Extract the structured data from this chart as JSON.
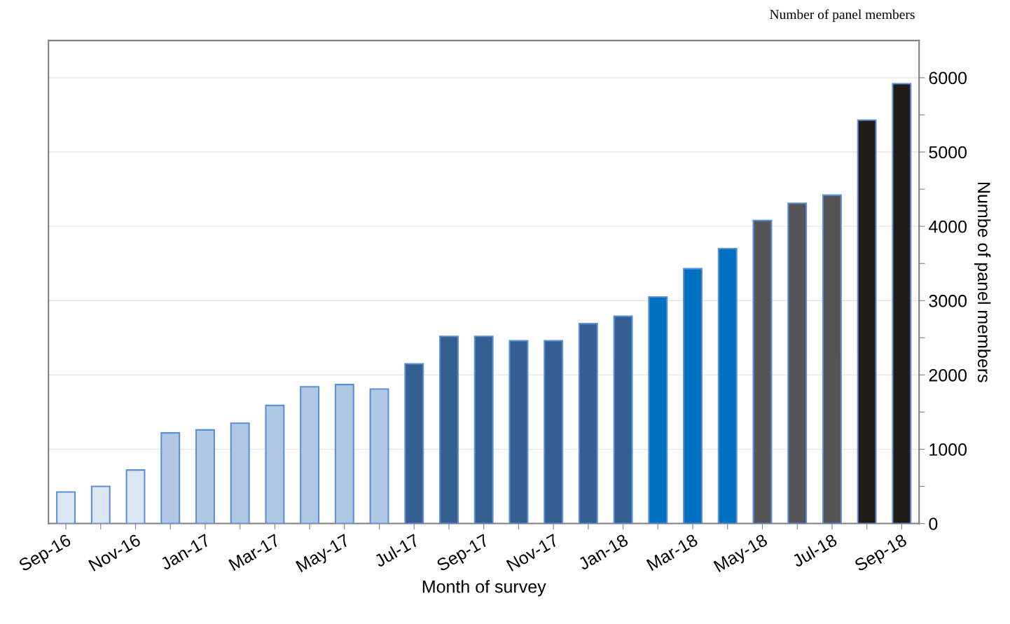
{
  "chart_data": {
    "type": "bar",
    "categories": [
      "Sep-16",
      null,
      "Nov-16",
      null,
      "Jan-17",
      null,
      "Mar-17",
      null,
      "May-17",
      null,
      "Jul-17",
      null,
      "Sep-17",
      null,
      "Nov-17",
      null,
      "Jan-18",
      null,
      "Mar-18",
      null,
      "May-18",
      null,
      "Jul-18",
      null,
      "Sep-18"
    ],
    "values": [
      425,
      500,
      720,
      1220,
      1260,
      1350,
      1590,
      1840,
      1870,
      1810,
      2150,
      2520,
      2520,
      2460,
      2460,
      2690,
      2790,
      3050,
      3430,
      3700,
      4080,
      4310,
      4420,
      5430,
      5920
    ],
    "colors": [
      "#dce6f2",
      "#dce6f2",
      "#dce6f2",
      "#b0c8e4",
      "#b0c8e4",
      "#b0c8e4",
      "#b0c8e4",
      "#b0c8e4",
      "#b0c8e4",
      "#b0c8e4",
      "#355f91",
      "#355f91",
      "#355f91",
      "#355f91",
      "#355f91",
      "#355f91",
      "#355f91",
      "#0070c0",
      "#0070c0",
      "#0070c0",
      "#555555",
      "#555555",
      "#555555",
      "#1f1d16",
      "#1f1d16"
    ],
    "xlabel": "Month of survey",
    "ylabel": "Numbe of panel members",
    "annotations": [
      "Number of panel members"
    ],
    "ylim": [
      0,
      6500
    ],
    "yticks": [
      0,
      {
        "value": 500,
        "label": null
      },
      1000,
      {
        "value": 1500,
        "label": null
      },
      2000,
      {
        "value": 2500,
        "label": null
      },
      3000,
      {
        "value": 3500,
        "label": null
      },
      4000,
      {
        "value": 4500,
        "label": null
      },
      5000,
      {
        "value": 5500,
        "label": null
      },
      6000
    ],
    "grid": "y"
  }
}
